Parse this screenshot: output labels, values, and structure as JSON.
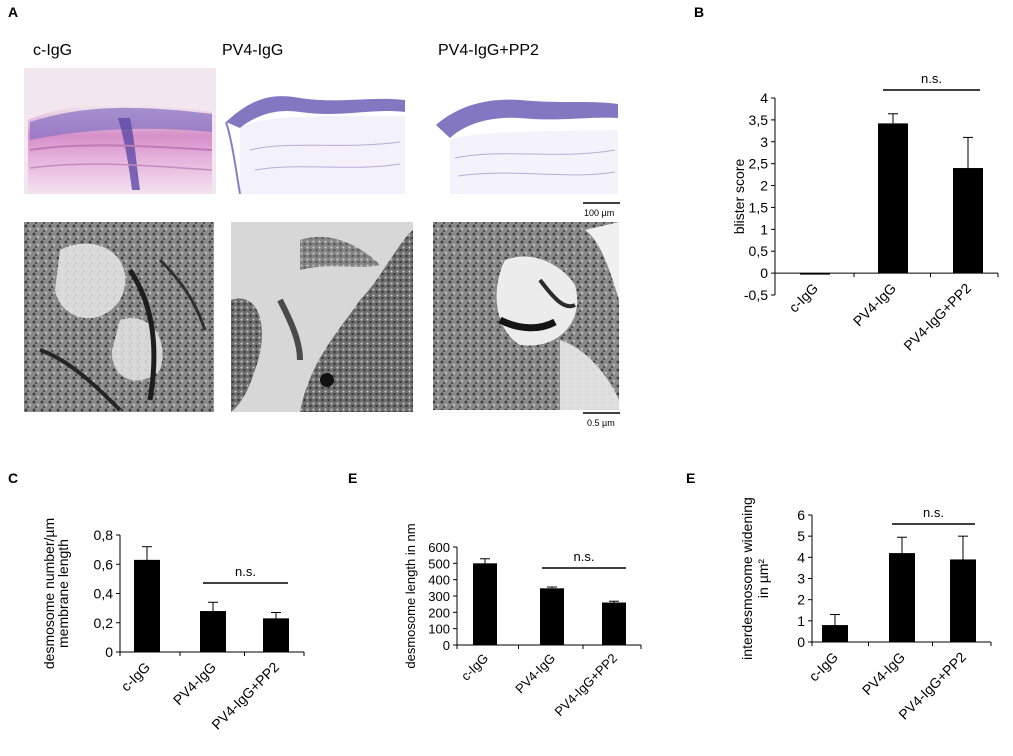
{
  "panel_labels": {
    "A": "A",
    "B": "B",
    "C": "C",
    "E1": "E",
    "E2": "E"
  },
  "panel_a": {
    "columns": [
      "c-IgG",
      "PV4-IgG",
      "PV4-IgG+PP2"
    ],
    "scale_top": "100 µm",
    "scale_bottom": "0.5 µm"
  },
  "chart_data": [
    {
      "id": "B",
      "type": "bar",
      "categories": [
        "c-IgG",
        "PV4-IgG",
        "PV4-IgG+PP2"
      ],
      "values": [
        0.0,
        3.42,
        2.4
      ],
      "errors": [
        0.0,
        0.22,
        0.7
      ],
      "ylabel": "blister score",
      "ylim": [
        -0.5,
        4
      ],
      "yticks": [
        -0.5,
        0,
        0.5,
        1,
        1.5,
        2,
        2.5,
        3,
        3.5,
        4
      ],
      "ytick_labels": [
        "-0,5",
        "0",
        "0,5",
        "1",
        "1,5",
        "2",
        "2,5",
        "3",
        "3,5",
        "4"
      ],
      "annotation": {
        "text": "n.s.",
        "from": 1,
        "to": 2
      },
      "grid": false
    },
    {
      "id": "C",
      "type": "bar",
      "categories": [
        "c-IgG",
        "PV4-IgG",
        "PV4-IgG+PP2"
      ],
      "values": [
        0.63,
        0.28,
        0.23
      ],
      "errors": [
        0.09,
        0.06,
        0.04
      ],
      "ylabel": [
        "desmosome number/µm",
        "membrane length"
      ],
      "ylim": [
        0,
        0.8
      ],
      "yticks": [
        0,
        0.2,
        0.4,
        0.6,
        0.8
      ],
      "ytick_labels": [
        "0",
        "0,2",
        "0,4",
        "0,6",
        "0,8"
      ],
      "annotation": {
        "text": "n.s.",
        "from": 1,
        "to": 2
      },
      "grid": false
    },
    {
      "id": "E1",
      "type": "bar",
      "categories": [
        "c-IgG",
        "PV4-IgG",
        "PV4-IgG+PP2"
      ],
      "values": [
        500,
        347,
        260
      ],
      "errors": [
        28,
        8,
        8
      ],
      "ylabel": "desmosome length in nm",
      "ylim": [
        0,
        600
      ],
      "yticks": [
        0,
        100,
        200,
        300,
        400,
        500,
        600
      ],
      "ytick_labels": [
        "0",
        "100",
        "200",
        "300",
        "400",
        "500",
        "600"
      ],
      "annotation": {
        "text": "n.s.",
        "from": 1,
        "to": 2
      },
      "grid": false
    },
    {
      "id": "E2",
      "type": "bar",
      "categories": [
        "c-IgG",
        "PV4-IgG",
        "PV4-IgG+PP2"
      ],
      "values": [
        0.8,
        4.2,
        3.9
      ],
      "errors": [
        0.5,
        0.75,
        1.1
      ],
      "ylabel": [
        "interdesmosome widening",
        "in µm²"
      ],
      "ylim": [
        0,
        6
      ],
      "yticks": [
        0,
        1,
        2,
        3,
        4,
        5,
        6
      ],
      "ytick_labels": [
        "0",
        "1",
        "2",
        "3",
        "4",
        "5",
        "6"
      ],
      "annotation": {
        "text": "n.s.",
        "from": 1,
        "to": 2
      },
      "grid": false
    }
  ]
}
